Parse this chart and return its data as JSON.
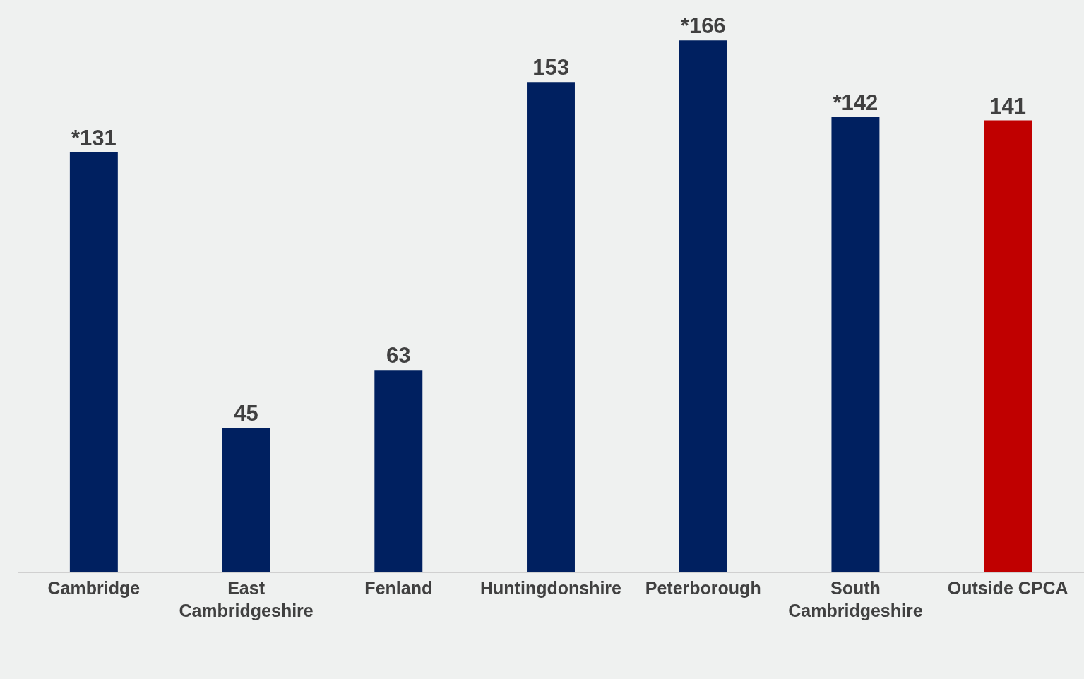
{
  "chart_data": {
    "type": "bar",
    "categories": [
      "Cambridge",
      "East Cambridgeshire",
      "Fenland",
      "Huntingdonshire",
      "Peterborough",
      "South Cambridgeshire",
      "Outside CPCA"
    ],
    "values": [
      131,
      45,
      63,
      153,
      166,
      142,
      141
    ],
    "colors": [
      "#002060",
      "#002060",
      "#002060",
      "#002060",
      "#002060",
      "#002060",
      "#c00000"
    ],
    "value_labels": [
      "*131",
      "45",
      "63",
      "153",
      "*166",
      "*142",
      "141"
    ],
    "grid": false,
    "legend": false
  }
}
